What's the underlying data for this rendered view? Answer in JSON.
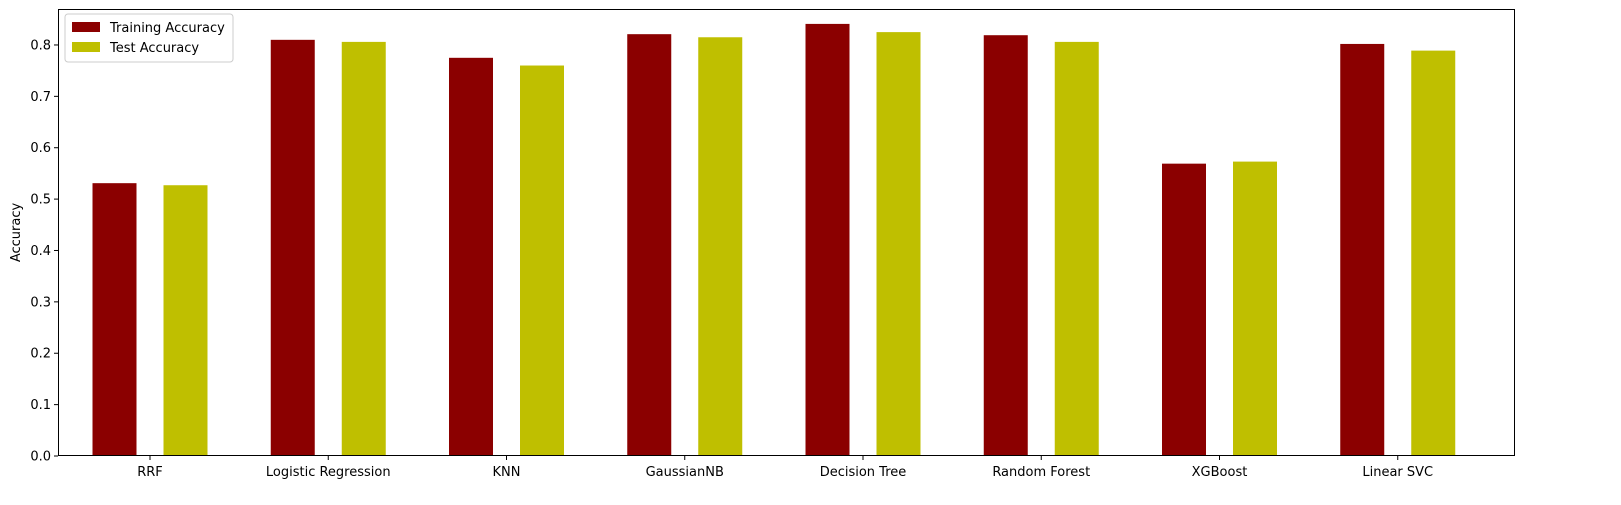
{
  "chart_data": {
    "type": "bar",
    "categories": [
      "RRF",
      "Logistic Regression",
      "KNN",
      "GaussianNB",
      "Decision Tree",
      "Random Forest",
      "XGBoost",
      "Linear SVC"
    ],
    "series": [
      {
        "name": "Training Accuracy",
        "color": "#8b0000",
        "values": [
          0.531,
          0.81,
          0.775,
          0.821,
          0.841,
          0.819,
          0.569,
          0.802
        ]
      },
      {
        "name": "Test Accuracy",
        "color": "#bfbf00",
        "values": [
          0.527,
          0.806,
          0.76,
          0.815,
          0.825,
          0.806,
          0.573,
          0.789
        ]
      }
    ],
    "ylabel": "Accuracy",
    "xlabel": "",
    "ylim": [
      0,
      0.87
    ],
    "yticks": [
      "0.0",
      "0.1",
      "0.2",
      "0.3",
      "0.4",
      "0.5",
      "0.6",
      "0.7",
      "0.8"
    ],
    "grid": false,
    "legend_position": "top-left"
  }
}
